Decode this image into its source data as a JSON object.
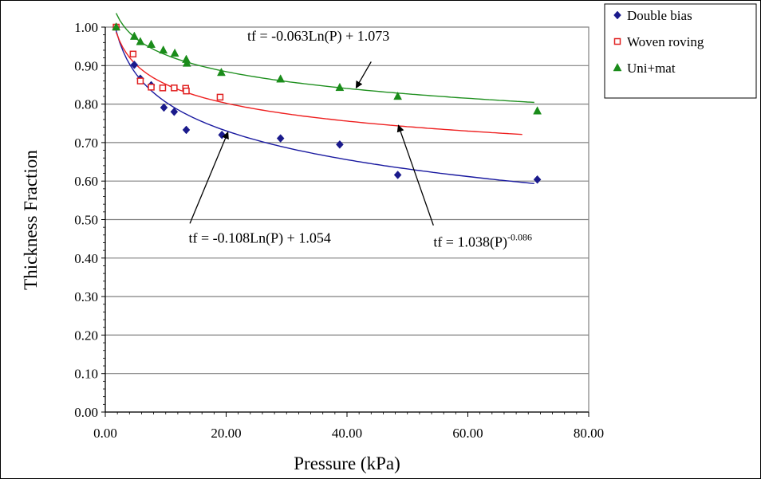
{
  "chart_data": {
    "type": "scatter",
    "title": "",
    "xlabel": "Pressure (kPa)",
    "ylabel": "Thickness Fraction",
    "xlim": [
      0,
      80
    ],
    "ylim": [
      0,
      1
    ],
    "xticks": [
      0,
      20,
      40,
      60,
      80
    ],
    "xtick_labels": [
      "0.00",
      "20.00",
      "40.00",
      "60.00",
      "80.00"
    ],
    "yticks": [
      0,
      0.1,
      0.2,
      0.3,
      0.4,
      0.5,
      0.6,
      0.7,
      0.8,
      0.9,
      1.0
    ],
    "ytick_labels": [
      "0.00",
      "0.10",
      "0.20",
      "0.30",
      "0.40",
      "0.50",
      "0.60",
      "0.70",
      "0.80",
      "0.90",
      "1.00"
    ],
    "grid": "horizontal",
    "legend_position": "top-right",
    "series": [
      {
        "name": "Double bias",
        "marker": "diamond",
        "color": "#1a1a8c",
        "x": [
          1.8,
          4.8,
          5.8,
          7.6,
          9.7,
          11.4,
          13.4,
          19.3,
          29.0,
          38.8,
          48.4,
          71.5
        ],
        "y": [
          1.0,
          0.902,
          0.866,
          0.849,
          0.791,
          0.78,
          0.733,
          0.72,
          0.711,
          0.695,
          0.616,
          0.604
        ],
        "trend": {
          "kind": "log",
          "a": -0.108,
          "b": 1.054,
          "x_range": [
            1.8,
            71.0
          ],
          "color": "#1a1aa0"
        }
      },
      {
        "name": "Woven roving",
        "marker": "open-square",
        "color": "#e02020",
        "x": [
          1.8,
          4.6,
          5.8,
          7.6,
          9.5,
          11.4,
          13.3,
          13.4,
          19.0
        ],
        "y": [
          1.0,
          0.93,
          0.86,
          0.844,
          0.842,
          0.842,
          0.841,
          0.834,
          0.818
        ],
        "trend": {
          "kind": "power",
          "a": 1.038,
          "b": -0.086,
          "x_range": [
            1.8,
            69.0
          ],
          "color": "#ee2020"
        }
      },
      {
        "name": "Uni+mat",
        "marker": "triangle",
        "color": "#1a8c1a",
        "x": [
          1.8,
          4.8,
          5.8,
          7.6,
          9.6,
          11.5,
          13.4,
          13.5,
          19.2,
          29.0,
          38.8,
          48.4,
          71.5
        ],
        "y": [
          1.0,
          0.976,
          0.962,
          0.955,
          0.94,
          0.932,
          0.916,
          0.906,
          0.882,
          0.865,
          0.843,
          0.82,
          0.782
        ],
        "trend": {
          "kind": "log",
          "a": -0.063,
          "b": 1.073,
          "x_range": [
            1.8,
            71.0
          ],
          "color": "#209020"
        }
      }
    ],
    "annotations": [
      {
        "text": "tf = -0.063Ln(P) + 1.073",
        "text_at": [
          23.5,
          0.965
        ],
        "arrow_from": [
          44.0,
          0.91
        ],
        "arrow_to": [
          41.5,
          0.842
        ]
      },
      {
        "text": "tf = -0.108Ln(P) + 1.054",
        "text_at": [
          13.8,
          0.44
        ],
        "arrow_from": [
          14.0,
          0.49
        ],
        "arrow_to": [
          20.3,
          0.727
        ]
      },
      {
        "text_base": "tf = 1.038(P)",
        "text_sup": "-0.086",
        "text_at": [
          54.3,
          0.43
        ],
        "arrow_from": [
          54.3,
          0.485
        ],
        "arrow_to": [
          48.5,
          0.745
        ]
      }
    ]
  }
}
